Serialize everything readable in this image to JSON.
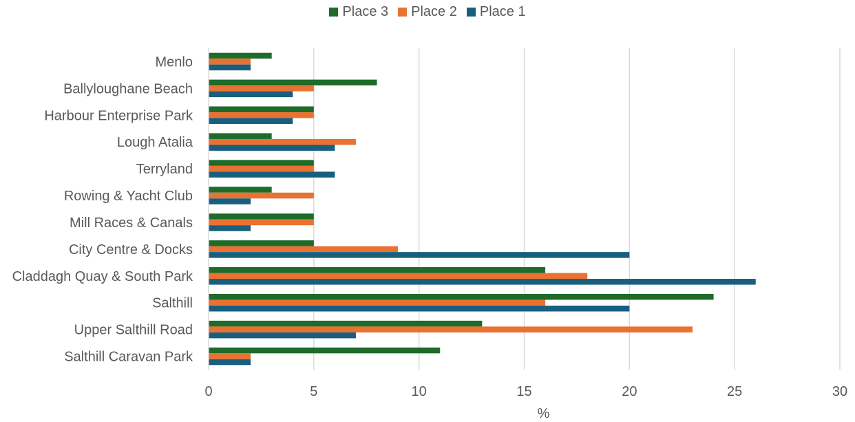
{
  "chart_data": {
    "type": "bar",
    "orientation": "horizontal",
    "categories": [
      "Menlo",
      "Ballyloughane Beach",
      "Harbour Enterprise Park",
      "Lough Atalia",
      "Terryland",
      "Rowing & Yacht Club",
      "Mill Races & Canals",
      "City Centre & Docks",
      "Claddagh Quay & South Park",
      "Salthill",
      "Upper Salthill Road",
      "Salthill Caravan Park"
    ],
    "series": [
      {
        "name": "Place 3",
        "color": "#1e6b2a",
        "values": [
          3,
          8,
          5,
          3,
          5,
          3,
          5,
          5,
          16,
          24,
          13,
          11
        ]
      },
      {
        "name": "Place 2",
        "color": "#e97132",
        "values": [
          2,
          5,
          5,
          7,
          5,
          5,
          5,
          9,
          18,
          16,
          23,
          2
        ]
      },
      {
        "name": "Place 1",
        "color": "#185f7f",
        "values": [
          2,
          4,
          4,
          6,
          6,
          2,
          2,
          20,
          26,
          20,
          7,
          2
        ]
      }
    ],
    "xlabel": "%",
    "ylabel": "",
    "xlim": [
      0,
      30
    ],
    "xticks": [
      0,
      5,
      10,
      15,
      20,
      25,
      30
    ],
    "grid": "vertical",
    "legend": "top-center"
  }
}
